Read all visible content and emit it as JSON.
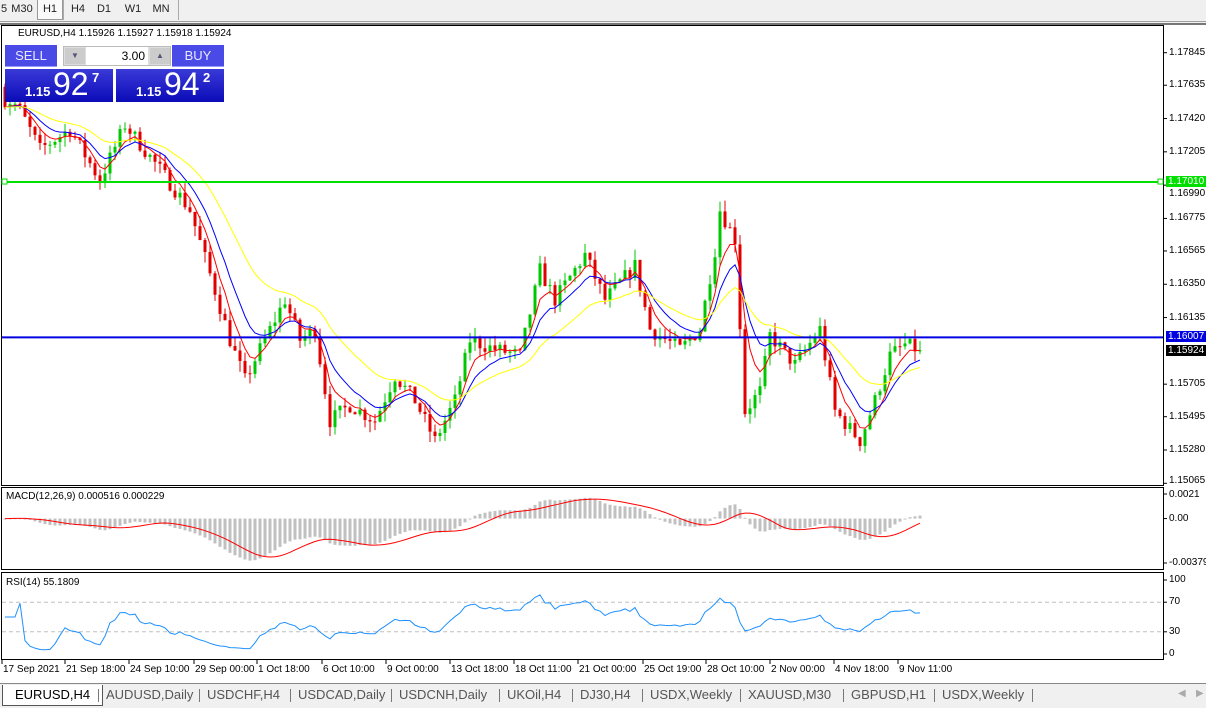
{
  "timeframes": [
    "5",
    "M30",
    "H1",
    "H4",
    "D1",
    "W1",
    "MN"
  ],
  "active_timeframe": "H1",
  "chart": {
    "header": "EURUSD,H4  1.15926 1.15927 1.15918 1.15924",
    "trade_panel": {
      "sell_label": "SELL",
      "buy_label": "BUY",
      "lot": "3.00",
      "sell": {
        "prefix": "1.15",
        "big": "92",
        "sup": "7"
      },
      "buy": {
        "prefix": "1.15",
        "big": "94",
        "sup": "2"
      }
    },
    "macd_label": "MACD(12,26,9) 0.000516 0.000229",
    "rsi_label": "RSI(14) 55.1809"
  },
  "chart_data": {
    "type": "candlestick",
    "symbol": "EURUSD",
    "timeframe": "H4",
    "price_ticks": [
      "1.17845",
      "1.17635",
      "1.17420",
      "1.17205",
      "1.16990",
      "1.16775",
      "1.16565",
      "1.16350",
      "1.16135",
      "1.15705",
      "1.15495",
      "1.15280",
      "1.15065"
    ],
    "ylim": [
      1.15065,
      1.17845
    ],
    "hlines": [
      {
        "price": "1.17010",
        "color": "#00e000"
      },
      {
        "price": "1.16007",
        "color": "#0000e0"
      }
    ],
    "bid": {
      "price": "1.15924",
      "color": "#000000"
    },
    "closes": [
      1.17475,
      1.1722,
      1.1735,
      1.1702,
      1.1738,
      1.1709,
      1.1683,
      1.1631,
      1.1599,
      1.1573,
      1.1593,
      1.1625,
      1.1599,
      1.1606,
      1.1547,
      1.1557,
      1.1547,
      1.1576,
      1.156,
      1.1534,
      1.156,
      1.1599,
      1.1593,
      1.1589,
      1.1644,
      1.1625,
      1.1654,
      1.1625,
      1.1647,
      1.1606,
      1.1593,
      1.1606,
      1.1657,
      1.1683,
      1.1664,
      1.1553,
      1.1566,
      1.1602,
      1.1583,
      1.1606,
      1.1553,
      1.1534,
      1.156,
      1.1589,
      1.1596,
      1.15924
    ],
    "ma_colors": [
      "#ff0000",
      "#0000ff",
      "#ffff00"
    ],
    "candle_colors": {
      "bull": "#00c800",
      "bear": "#e00000"
    },
    "x_labels": [
      "17 Sep 2021",
      "21 Sep 18:00",
      "24 Sep 10:00",
      "29 Sep 00:00",
      "1 Oct 18:00",
      "6 Oct 10:00",
      "9 Oct 00:00",
      "13 Oct 18:00",
      "18 Oct 11:00",
      "21 Oct 00:00",
      "25 Oct 19:00",
      "28 Oct 10:00",
      "2 Nov 00:00",
      "4 Nov 18:00",
      "9 Nov 11:00"
    ],
    "macd": {
      "ticks": [
        "0.0021",
        "0.00",
        "-0.003798"
      ],
      "ylim": [
        -0.003798,
        0.0021
      ],
      "hist_color": "#c0c0c0",
      "signal_color": "#ff0000"
    },
    "rsi": {
      "ticks": [
        "100",
        "70",
        "30",
        "0"
      ],
      "levels": [
        70,
        30
      ],
      "ylim": [
        0,
        100
      ],
      "color": "#1e90ff"
    }
  },
  "tabs": [
    "EURUSD,H4",
    "AUDUSD,Daily",
    "USDCHF,H4",
    "USDCAD,Daily",
    "USDCNH,Daily",
    "UKOil,H4",
    "DJ30,H4",
    "USDX,Weekly",
    "XAUUSD,M30",
    "GBPUSD,H1",
    "USDX,Weekly"
  ],
  "active_tab": "EURUSD,H4"
}
